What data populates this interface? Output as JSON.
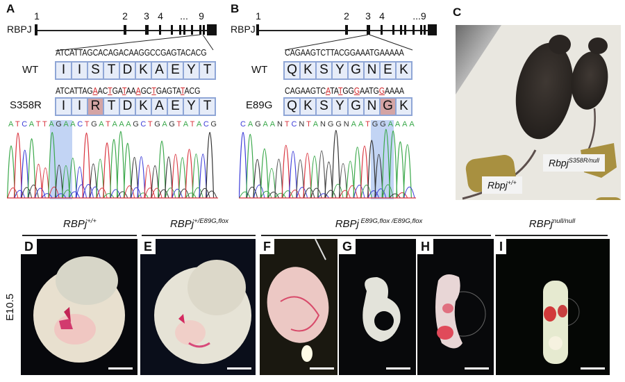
{
  "panels": {
    "A": {
      "letter": "A",
      "gene": "RBPJ",
      "exon_labels": [
        "1",
        "2",
        "3",
        "4",
        "...",
        "9"
      ],
      "wt_label": "WT",
      "wt_dna": "ATCATTAGCACAGACAAGGCCGAGTACACG",
      "wt_aa": [
        "I",
        "I",
        "S",
        "T",
        "D",
        "K",
        "A",
        "E",
        "Y",
        "T"
      ],
      "mut_label": "S358R",
      "mut_dna_parts": [
        "ATCATTAG",
        "A",
        "AC",
        "T",
        "GA",
        "T",
        "AA",
        "A",
        "GC",
        "T",
        "GAGTA",
        "T",
        "ACG"
      ],
      "mut_aa": [
        "I",
        "I",
        "R",
        "T",
        "D",
        "K",
        "A",
        "E",
        "Y",
        "T"
      ],
      "mut_aa_highlight_index": 2,
      "chromatogram_bases": [
        "A",
        "T",
        "C",
        "A",
        "T",
        "T",
        "A",
        "G",
        "A",
        "A",
        "C",
        "T",
        "G",
        "A",
        "T",
        "A",
        "A",
        "A",
        "G",
        "C",
        "T",
        "G",
        "A",
        "G",
        "T",
        "A",
        "T",
        "A",
        "C",
        "G"
      ]
    },
    "B": {
      "letter": "B",
      "gene": "RBPJ",
      "exon_labels": [
        "1",
        "2",
        "3",
        "4",
        "...9"
      ],
      "wt_label": "WT",
      "wt_dna": "CAGAAGTCTTACGGAAATGAAAAA",
      "wt_aa": [
        "Q",
        "K",
        "S",
        "Y",
        "G",
        "N",
        "E",
        "K"
      ],
      "mut_label": "E89G",
      "mut_dna_parts": [
        "CAGAAGTC",
        "A",
        "TA",
        "T",
        "GG",
        "G",
        "AATG",
        "G",
        "AAAA"
      ],
      "mut_aa": [
        "Q",
        "K",
        "S",
        "Y",
        "G",
        "N",
        "G",
        "K"
      ],
      "mut_aa_highlight_index": 6,
      "chromatogram_bases": [
        "C",
        "A",
        "G",
        "A",
        "A",
        "N",
        "T",
        "C",
        "N",
        "T",
        "A",
        "N",
        "G",
        "G",
        "N",
        "A",
        "A",
        "T",
        "G",
        "G",
        "A",
        "A",
        "A",
        "A"
      ]
    },
    "C": {
      "letter": "C",
      "label_wt": {
        "base": "Rbpj",
        "sup": "+/+"
      },
      "label_mut": {
        "base": "Rbpj",
        "sup": "S358R/null"
      }
    }
  },
  "bottom": {
    "stage_label": "E10.5",
    "genotype_headers": [
      {
        "base": "RBPj",
        "sup": "+/+"
      },
      {
        "base": "RBPj",
        "sup": "+/E89G,flox"
      },
      {
        "base": "RBPj",
        "sup": " E89G,flox /E89G,flox"
      },
      {
        "base": "RBPj",
        "sup": "null/null"
      }
    ],
    "embryo_panels": [
      "D",
      "E",
      "F",
      "G",
      "H",
      "I"
    ]
  },
  "colors": {
    "aa_box_border": "#8fa6d6",
    "aa_box_fill": "#e6ecf8",
    "aa_highlight": "#d4a4a4",
    "mutation_red": "#d0262a",
    "trace_A": "#3aa84a",
    "trace_T": "#d9333d",
    "trace_C": "#3a3ad8",
    "trace_G": "#333333",
    "chrom_highlight": "#a9c2ec"
  }
}
